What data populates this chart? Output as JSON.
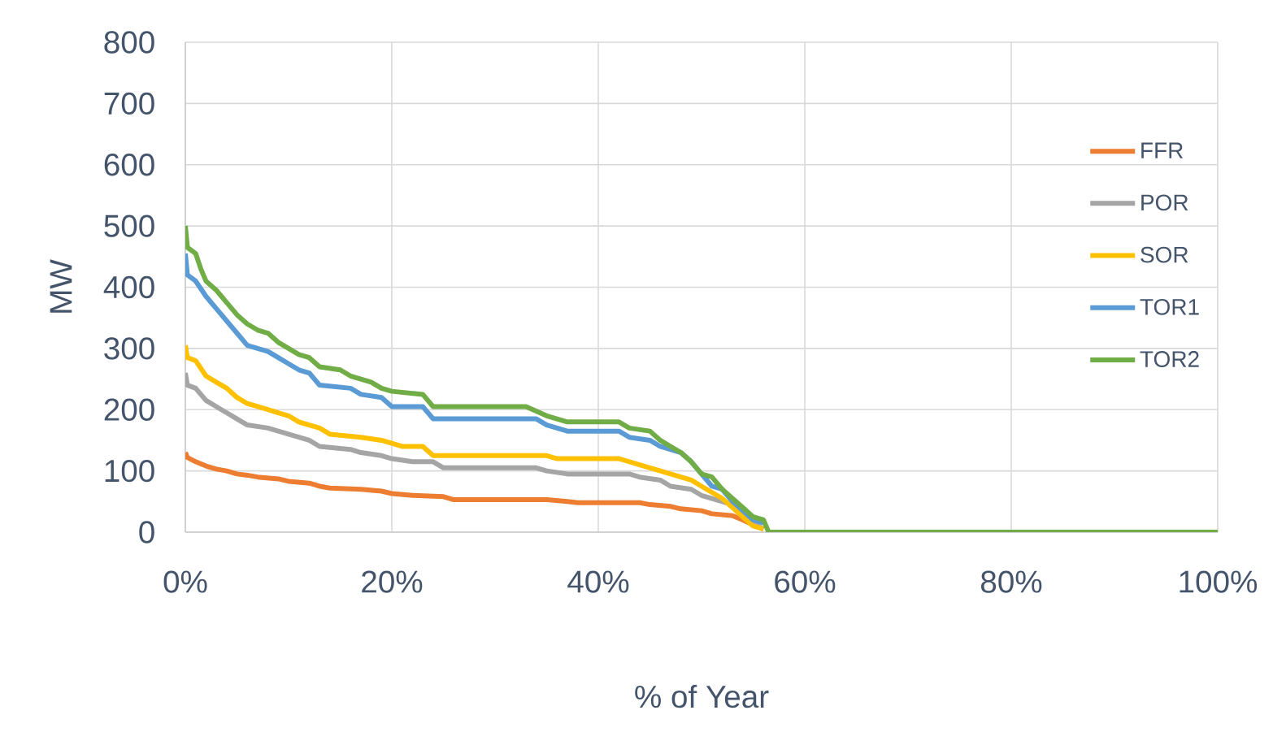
{
  "chart_data": {
    "type": "line",
    "xlabel": "% of Year",
    "ylabel": "MW",
    "xlim": [
      0,
      100
    ],
    "ylim": [
      0,
      800
    ],
    "xticks": [
      {
        "value": 0,
        "label": "0%"
      },
      {
        "value": 20,
        "label": "20%"
      },
      {
        "value": 40,
        "label": "40%"
      },
      {
        "value": 60,
        "label": "60%"
      },
      {
        "value": 80,
        "label": "80%"
      },
      {
        "value": 100,
        "label": "100%"
      }
    ],
    "yticks": [
      0,
      100,
      200,
      300,
      400,
      500,
      600,
      700,
      800
    ],
    "grid": true,
    "legend": "right",
    "marker": "none",
    "series": [
      {
        "name": "FFR",
        "color": "#ed7d31",
        "x": [
          0,
          0.2,
          1,
          2,
          3,
          4,
          5,
          6,
          7,
          9,
          10,
          12,
          13,
          14,
          17,
          19,
          20,
          22,
          25,
          26,
          35,
          37,
          38,
          44,
          45,
          47,
          48,
          50,
          51,
          53,
          54,
          55,
          56
        ],
        "values": [
          130,
          122,
          115,
          108,
          103,
          100,
          95,
          93,
          90,
          87,
          83,
          80,
          75,
          72,
          70,
          67,
          63,
          60,
          58,
          53,
          53,
          50,
          48,
          48,
          45,
          42,
          38,
          35,
          30,
          27,
          20,
          12,
          5
        ]
      },
      {
        "name": "POR",
        "color": "#a5a5a5",
        "x": [
          0,
          0.2,
          1,
          2,
          3,
          4,
          5,
          6,
          8,
          9,
          10,
          11,
          12,
          13,
          16,
          17,
          19,
          20,
          22,
          24,
          25,
          34,
          35,
          37,
          43,
          44,
          46,
          47,
          49,
          50,
          51,
          53,
          54,
          55,
          56
        ],
        "values": [
          260,
          240,
          235,
          215,
          205,
          195,
          185,
          175,
          170,
          165,
          160,
          155,
          150,
          140,
          135,
          130,
          125,
          120,
          115,
          115,
          105,
          105,
          100,
          95,
          95,
          90,
          85,
          75,
          70,
          60,
          55,
          45,
          30,
          15,
          5
        ]
      },
      {
        "name": "SOR",
        "color": "#ffc000",
        "x": [
          0,
          0.2,
          1,
          2,
          3,
          4,
          5,
          6,
          8,
          9,
          10,
          11,
          12,
          13,
          14,
          17,
          19,
          20,
          21,
          23,
          24,
          26,
          35,
          36,
          42,
          44,
          46,
          48,
          49,
          50,
          51,
          52,
          53,
          54,
          55,
          56
        ],
        "values": [
          305,
          285,
          280,
          255,
          245,
          235,
          220,
          210,
          200,
          195,
          190,
          180,
          175,
          170,
          160,
          155,
          150,
          145,
          140,
          140,
          125,
          125,
          125,
          120,
          120,
          110,
          100,
          90,
          85,
          75,
          65,
          55,
          40,
          25,
          10,
          5
        ]
      },
      {
        "name": "TOR1",
        "color": "#5b9bd5",
        "x": [
          0,
          0.2,
          1,
          2,
          3,
          4,
          5,
          6,
          8,
          9,
          10,
          11,
          12,
          13,
          16,
          17,
          19,
          20,
          23,
          24,
          26,
          34,
          35,
          37,
          42,
          43,
          45,
          46,
          48,
          49,
          50,
          51,
          52,
          53,
          54,
          55,
          56
        ],
        "values": [
          455,
          420,
          410,
          385,
          365,
          345,
          325,
          305,
          295,
          285,
          275,
          265,
          260,
          240,
          235,
          225,
          220,
          205,
          205,
          185,
          185,
          185,
          175,
          165,
          165,
          155,
          150,
          140,
          130,
          115,
          95,
          75,
          70,
          50,
          35,
          20,
          15
        ]
      },
      {
        "name": "TOR2",
        "color": "#70ad47",
        "x": [
          0,
          0.2,
          1,
          1.5,
          2,
          3,
          4,
          5,
          6,
          7,
          8,
          9,
          10,
          11,
          12,
          13,
          15,
          16,
          18,
          19,
          20,
          23,
          24,
          26,
          33,
          35,
          37,
          42,
          43,
          45,
          46,
          47,
          48,
          49,
          50,
          51,
          52,
          53,
          54,
          55,
          56,
          56.5,
          100
        ],
        "values": [
          500,
          465,
          455,
          430,
          410,
          395,
          375,
          355,
          340,
          330,
          325,
          310,
          300,
          290,
          285,
          270,
          265,
          255,
          245,
          235,
          230,
          225,
          205,
          205,
          205,
          190,
          180,
          180,
          170,
          165,
          150,
          140,
          130,
          115,
          95,
          90,
          70,
          55,
          40,
          25,
          20,
          0,
          0
        ]
      }
    ]
  }
}
